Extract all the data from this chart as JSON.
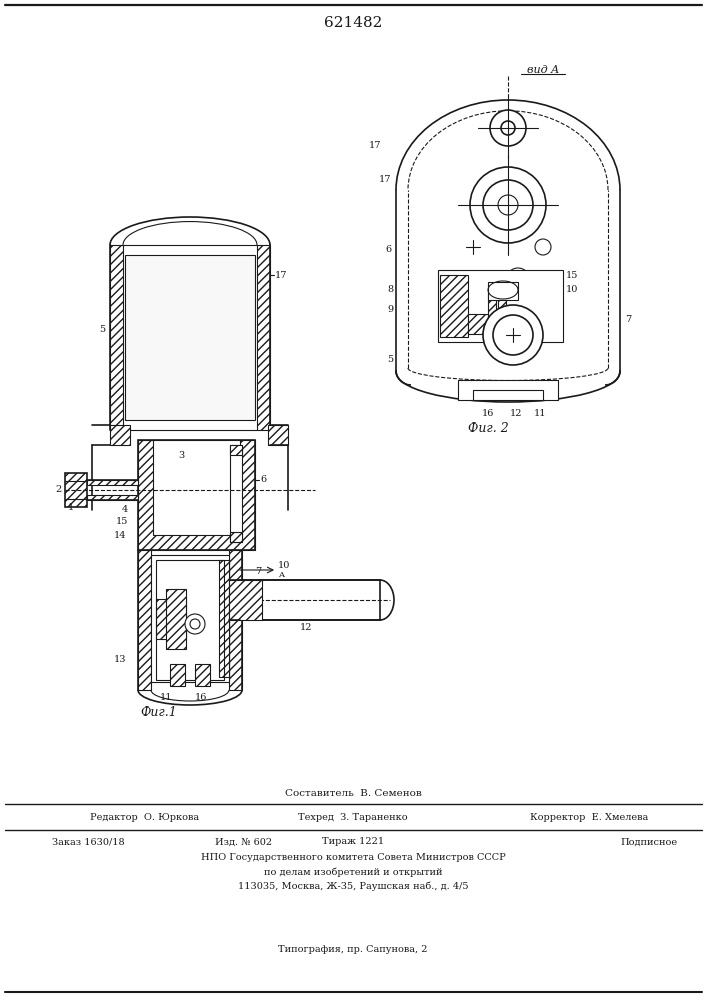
{
  "patent_number": "621482",
  "bg_color": "#ffffff",
  "line_color": "#1a1a1a",
  "fig_label1": "Фиг.1",
  "fig_label2": "Фиг. 2",
  "vid_a_label": "вид A",
  "editor_line": "Редактор  О. Юркова",
  "techred_line": "Техред  З. Тараненко",
  "corrector_line": "Корректор  Е. Хмелева",
  "order_line": "Заказ 1630/18",
  "edition_line": "Изд. № 602",
  "tirage_line": "Тираж 1221",
  "podpisnoe_line": "Подписное",
  "npo_line": "НПО Государственного комитета Совета Министров СССР",
  "po_delam_line": "по делам изобретений и открытий",
  "address_line": "113035, Москва, Ж-35, Раушская наб., д. 4/5",
  "typography_line": "Типография, пр. Сапунова, 2",
  "sostavitel_line": "Составитель  В. Семенов"
}
